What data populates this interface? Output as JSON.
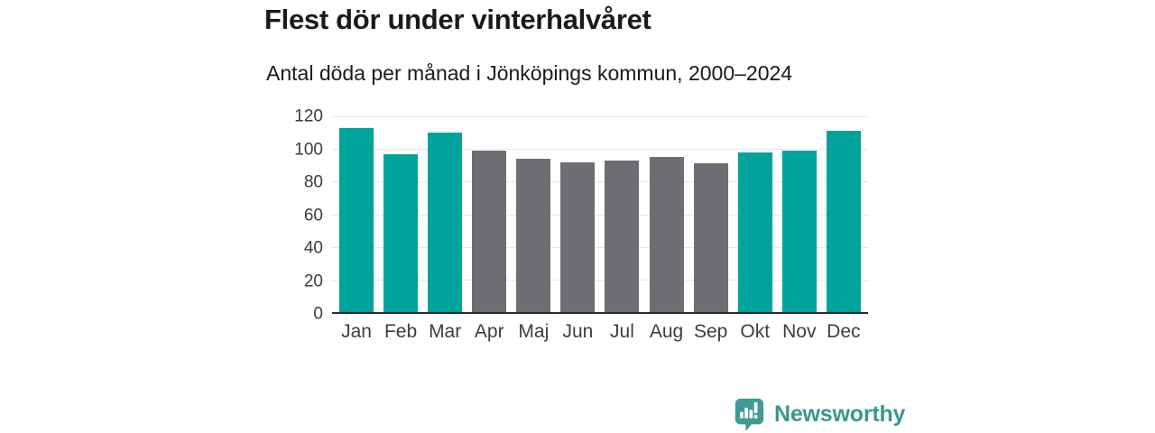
{
  "chart_data": {
    "type": "bar",
    "title": "Flest dör under vinterhalvåret",
    "subtitle": "Antal döda per månad i Jönköpings kommun, 2000–2024",
    "categories": [
      "Jan",
      "Feb",
      "Mar",
      "Apr",
      "Maj",
      "Jun",
      "Jul",
      "Aug",
      "Sep",
      "Okt",
      "Nov",
      "Dec"
    ],
    "values": [
      113,
      97,
      110,
      99,
      94,
      92,
      93,
      95,
      91,
      98,
      99,
      111
    ],
    "highlighted_categories": [
      "Jan",
      "Feb",
      "Mar",
      "Okt",
      "Nov",
      "Dec"
    ],
    "colors": {
      "winter_bar": "#00a39b",
      "summer_bar": "#6d6d74",
      "gridline": "#e7e7e7",
      "baseline": "#2b2b2b",
      "axis_text": "#3d3d3d",
      "title_text": "#1a1a1a"
    },
    "xlabel": "",
    "ylabel": "",
    "ylim": [
      0,
      120
    ],
    "yticks": [
      0,
      20,
      40,
      60,
      80,
      100,
      120
    ],
    "grid": true,
    "legend": false
  },
  "brand": {
    "name": "Newsworthy",
    "color": "#3a968f",
    "icon_color": "#3f9b94",
    "icon": "bar-chart-speech-bubble-icon"
  }
}
